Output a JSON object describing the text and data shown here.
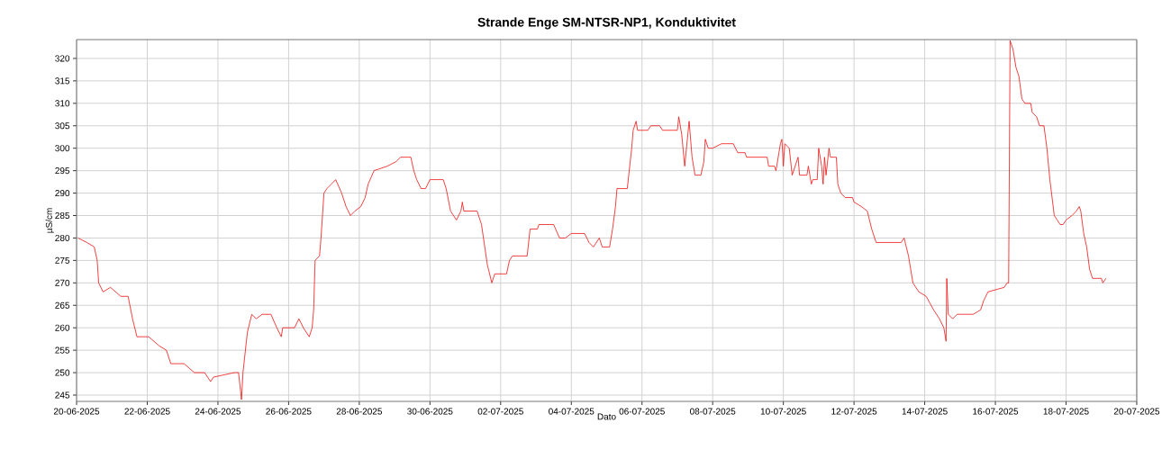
{
  "chart_data": {
    "type": "line",
    "title": "Strande Enge SM-NTSR-NP1, Konduktivitet",
    "xlabel": "Dato",
    "ylabel": "µS/cm",
    "xlim": [
      "2025-06-20",
      "2025-07-20"
    ],
    "ylim": [
      243.6,
      324.2
    ],
    "xticks": [
      {
        "value": "2025-06-20",
        "label": "20-06-2025"
      },
      {
        "value": "2025-06-22",
        "label": "22-06-2025"
      },
      {
        "value": "2025-06-24",
        "label": "24-06-2025"
      },
      {
        "value": "2025-06-26",
        "label": "26-06-2025"
      },
      {
        "value": "2025-06-28",
        "label": "28-06-2025"
      },
      {
        "value": "2025-06-30",
        "label": "30-06-2025"
      },
      {
        "value": "2025-07-02",
        "label": "02-07-2025"
      },
      {
        "value": "2025-07-04",
        "label": "04-07-2025"
      },
      {
        "value": "2025-07-06",
        "label": "06-07-2025"
      },
      {
        "value": "2025-07-08",
        "label": "08-07-2025"
      },
      {
        "value": "2025-07-10",
        "label": "10-07-2025"
      },
      {
        "value": "2025-07-12",
        "label": "12-07-2025"
      },
      {
        "value": "2025-07-14",
        "label": "14-07-2025"
      },
      {
        "value": "2025-07-16",
        "label": "16-07-2025"
      },
      {
        "value": "2025-07-18",
        "label": "18-07-2025"
      },
      {
        "value": "2025-07-20",
        "label": "20-07-2025"
      }
    ],
    "yticks": [
      245,
      250,
      255,
      260,
      265,
      270,
      275,
      280,
      285,
      290,
      295,
      300,
      305,
      310,
      315,
      320
    ],
    "grid": true,
    "marker": "none",
    "line_style": "solid",
    "series": [
      {
        "color": "#ee1111",
        "x": [
          "2025-06-20T01:00",
          "2025-06-20T07:00",
          "2025-06-20T12:00",
          "2025-06-20T14:00",
          "2025-06-20T15:00",
          "2025-06-20T18:00",
          "2025-06-20T23:00",
          "2025-06-21T06:00",
          "2025-06-21T11:00",
          "2025-06-21T14:00",
          "2025-06-21T17:00",
          "2025-06-22T01:00",
          "2025-06-22T08:00",
          "2025-06-22T13:00",
          "2025-06-22T16:00",
          "2025-06-23T01:00",
          "2025-06-23T08:00",
          "2025-06-23T15:00",
          "2025-06-23T19:00",
          "2025-06-23T21:00",
          "2025-06-24T11:00",
          "2025-06-24T14:00",
          "2025-06-24T16:00",
          "2025-06-24T17:00",
          "2025-06-24T20:00",
          "2025-06-24T23:00",
          "2025-06-25T02:00",
          "2025-06-25T06:00",
          "2025-06-25T12:00",
          "2025-06-25T16:00",
          "2025-06-25T19:00",
          "2025-06-25T20:00",
          "2025-06-26T04:00",
          "2025-06-26T07:00",
          "2025-06-26T10:00",
          "2025-06-26T14:00",
          "2025-06-26T16:00",
          "2025-06-26T17:00",
          "2025-06-26T18:00",
          "2025-06-26T21:00",
          "2025-06-26T22:00",
          "2025-06-27T00:00",
          "2025-06-27T02:00",
          "2025-06-27T05:00",
          "2025-06-27T08:00",
          "2025-06-27T12:00",
          "2025-06-27T15:00",
          "2025-06-27T18:00",
          "2025-06-27T21:00",
          "2025-06-28T01:00",
          "2025-06-28T04:00",
          "2025-06-28T06:00",
          "2025-06-28T10:00",
          "2025-06-28T19:00",
          "2025-06-29T01:00",
          "2025-06-29T04:00",
          "2025-06-29T11:00",
          "2025-06-29T13:00",
          "2025-06-29T15:00",
          "2025-06-29T18:00",
          "2025-06-29T21:00",
          "2025-06-30T00:00",
          "2025-06-30T04:00",
          "2025-06-30T09:00",
          "2025-06-30T11:00",
          "2025-06-30T14:00",
          "2025-06-30T18:00",
          "2025-06-30T21:00",
          "2025-06-30T22:00",
          "2025-06-30T23:00",
          "2025-07-01T08:00",
          "2025-07-01T11:00",
          "2025-07-01T15:00",
          "2025-07-01T18:00",
          "2025-07-01T20:00",
          "2025-07-02T04:00",
          "2025-07-02T06:00",
          "2025-07-02T08:00",
          "2025-07-02T18:00",
          "2025-07-02T20:00",
          "2025-07-03T01:00",
          "2025-07-03T02:00",
          "2025-07-03T12:00",
          "2025-07-03T16:00",
          "2025-07-03T20:00",
          "2025-07-04T00:00",
          "2025-07-04T09:00",
          "2025-07-04T12:00",
          "2025-07-04T15:00",
          "2025-07-04T19:00",
          "2025-07-04T21:00",
          "2025-07-05T02:00",
          "2025-07-05T04:00",
          "2025-07-05T06:00",
          "2025-07-05T07:00",
          "2025-07-05T14:00",
          "2025-07-05T17:00",
          "2025-07-05T18:00",
          "2025-07-05T20:00",
          "2025-07-05T21:00",
          "2025-07-06T04:00",
          "2025-07-06T06:00",
          "2025-07-06T12:00",
          "2025-07-06T14:00",
          "2025-07-07T00:00",
          "2025-07-07T01:00",
          "2025-07-07T03:00",
          "2025-07-07T05:00",
          "2025-07-07T08:00",
          "2025-07-07T10:00",
          "2025-07-07T12:00",
          "2025-07-07T16:00",
          "2025-07-07T18:00",
          "2025-07-07T19:00",
          "2025-07-07T21:00",
          "2025-07-08T00:00",
          "2025-07-08T06:00",
          "2025-07-08T14:00",
          "2025-07-08T17:00",
          "2025-07-08T22:00",
          "2025-07-08T23:00",
          "2025-07-09T13:00",
          "2025-07-09T14:00",
          "2025-07-09T18:00",
          "2025-07-09T19:00",
          "2025-07-09T22:00",
          "2025-07-09T23:00",
          "2025-07-10T00:00",
          "2025-07-10T01:00",
          "2025-07-10T04:00",
          "2025-07-10T06:00",
          "2025-07-10T10:00",
          "2025-07-10T11:00",
          "2025-07-10T16:00",
          "2025-07-10T17:00",
          "2025-07-10T19:00",
          "2025-07-10T20:00",
          "2025-07-10T23:00",
          "2025-07-11T00:00",
          "2025-07-11T02:00",
          "2025-07-11T03:00",
          "2025-07-11T04:00",
          "2025-07-11T05:00",
          "2025-07-11T07:00",
          "2025-07-11T08:00",
          "2025-07-11T12:00",
          "2025-07-11T13:00",
          "2025-07-11T15:00",
          "2025-07-11T18:00",
          "2025-07-11T23:00",
          "2025-07-12T00:00",
          "2025-07-12T05:00",
          "2025-07-12T09:00",
          "2025-07-12T12:00",
          "2025-07-12T14:00",
          "2025-07-12T15:00",
          "2025-07-13T08:00",
          "2025-07-13T10:00",
          "2025-07-13T13:00",
          "2025-07-13T16:00",
          "2025-07-13T20:00",
          "2025-07-14T01:00",
          "2025-07-14T06:00",
          "2025-07-14T10:00",
          "2025-07-14T13:00",
          "2025-07-14T14:30",
          "2025-07-14T15:00",
          "2025-07-14T16:00",
          "2025-07-14T19:00",
          "2025-07-14T22:00",
          "2025-07-15T09:00",
          "2025-07-15T14:00",
          "2025-07-15T16:00",
          "2025-07-15T19:00",
          "2025-07-16T06:00",
          "2025-07-16T08:00",
          "2025-07-16T09:00",
          "2025-07-16T10:00",
          "2025-07-16T12:00",
          "2025-07-16T14:00",
          "2025-07-16T16:00",
          "2025-07-16T18:00",
          "2025-07-16T20:00",
          "2025-07-17T00:00",
          "2025-07-17T01:00",
          "2025-07-17T04:00",
          "2025-07-17T06:00",
          "2025-07-17T09:00",
          "2025-07-17T11:00",
          "2025-07-17T13:00",
          "2025-07-17T16:00",
          "2025-07-17T18:00",
          "2025-07-17T20:00",
          "2025-07-17T22:00",
          "2025-07-18T00:00",
          "2025-07-18T04:00",
          "2025-07-18T07:00",
          "2025-07-18T09:00",
          "2025-07-18T10:00",
          "2025-07-18T12:00",
          "2025-07-18T14:00",
          "2025-07-18T16:00",
          "2025-07-18T18:00",
          "2025-07-19T00:00",
          "2025-07-19T01:00",
          "2025-07-19T03:00"
        ],
        "values": [
          280,
          279,
          278,
          275,
          270,
          268,
          269,
          267,
          267,
          262,
          258,
          258,
          256,
          255,
          252,
          252,
          250,
          250,
          248,
          249,
          250,
          250,
          244,
          250,
          259,
          263,
          262,
          263,
          263,
          260,
          258,
          260,
          260,
          262,
          260,
          258,
          260,
          264,
          275,
          276,
          280,
          290,
          291,
          292,
          293,
          290,
          287,
          285,
          286,
          287,
          289,
          292,
          295,
          296,
          297,
          298,
          298,
          295,
          293,
          291,
          291,
          293,
          293,
          293,
          291,
          286,
          284,
          286,
          288,
          286,
          286,
          283,
          274,
          270,
          272,
          272,
          275,
          276,
          276,
          282,
          282,
          283,
          283,
          280,
          280,
          281,
          281,
          279,
          278,
          280,
          278,
          278,
          282,
          287,
          291,
          291,
          300,
          304,
          306,
          304,
          304,
          305,
          305,
          304,
          304,
          307,
          303,
          296,
          306,
          298,
          294,
          294,
          297,
          302,
          300,
          300,
          301,
          301,
          299,
          299,
          298,
          298,
          296,
          296,
          295,
          301,
          302,
          296,
          301,
          300,
          294,
          298,
          294,
          294,
          296,
          292,
          293,
          293,
          300,
          296,
          292,
          298,
          294,
          300,
          298,
          298,
          292,
          290,
          289,
          289,
          288,
          287,
          286,
          282,
          280,
          279,
          279,
          280,
          276,
          270,
          268,
          267,
          264,
          262,
          260,
          257,
          271,
          263,
          262,
          263,
          263,
          264,
          266,
          268,
          269,
          270,
          270,
          324,
          322,
          318,
          316,
          311,
          310,
          310,
          308,
          307,
          305,
          305,
          300,
          293,
          285,
          284,
          283,
          283,
          284,
          285,
          286,
          287,
          286,
          281,
          278,
          273,
          271,
          271,
          270,
          271
        ]
      }
    ]
  }
}
